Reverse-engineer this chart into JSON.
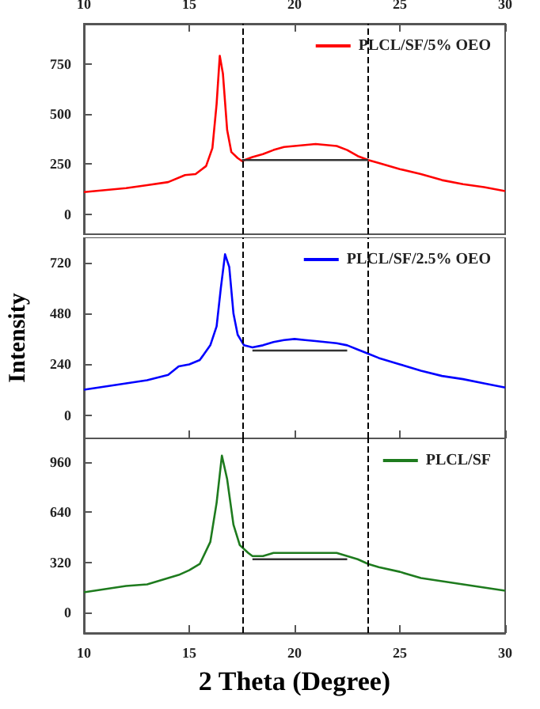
{
  "chart_data": [
    {
      "type": "line",
      "xlim": [
        10,
        30
      ],
      "xticks": [
        10,
        15,
        20,
        25,
        30
      ],
      "ylim": [
        -100,
        950
      ],
      "yticks": [
        0,
        250,
        500,
        750
      ],
      "legend": "top right",
      "grid": false,
      "marker": "none",
      "line_style": "solid",
      "ref_lines": [
        {
          "axis": "x",
          "value": 17.5,
          "line_style": "dashed",
          "color": "#000000"
        },
        {
          "axis": "x",
          "value": 23.5,
          "line_style": "dashed",
          "color": "#000000"
        }
      ],
      "series": [
        {
          "name": "PLCL/SF/5% OEO",
          "color": "#ff0000",
          "x": [
            10,
            11,
            12,
            13,
            14,
            14.8,
            15.3,
            15.8,
            16.1,
            16.3,
            16.45,
            16.6,
            16.8,
            17.0,
            17.3,
            17.5,
            18,
            18.5,
            19,
            19.5,
            20,
            20.5,
            21,
            21.5,
            22,
            22.5,
            23,
            23.5,
            24,
            25,
            26,
            27,
            28,
            29,
            30
          ],
          "values": [
            110,
            120,
            130,
            145,
            160,
            195,
            200,
            240,
            330,
            550,
            790,
            700,
            420,
            310,
            280,
            265,
            285,
            300,
            320,
            335,
            340,
            345,
            350,
            345,
            340,
            320,
            290,
            270,
            255,
            225,
            200,
            170,
            150,
            135,
            115
          ]
        },
        {
          "color": "#333333",
          "x": [
            17.5,
            23.5
          ],
          "values": [
            270,
            270
          ]
        }
      ]
    },
    {
      "type": "line",
      "xlim": [
        10,
        30
      ],
      "xticks": [
        10,
        15,
        20,
        25,
        30
      ],
      "ylim": [
        -110,
        840
      ],
      "yticks": [
        0,
        240,
        480,
        720
      ],
      "tick_labels": "y",
      "ylabel": "Intensity",
      "legend": "top right",
      "grid": false,
      "marker": "none",
      "line_style": "solid",
      "ref_lines": [
        {
          "axis": "x",
          "value": 17.5,
          "line_style": "dashed",
          "color": "#000000"
        },
        {
          "axis": "x",
          "value": 23.5,
          "line_style": "dashed",
          "color": "#000000"
        }
      ],
      "series": [
        {
          "name": "PLCL/SF/2.5% OEO",
          "color": "#0000ff",
          "x": [
            10,
            11,
            12,
            13,
            14,
            14.5,
            15,
            15.5,
            16,
            16.3,
            16.5,
            16.7,
            16.9,
            17.1,
            17.3,
            17.6,
            18,
            18.5,
            19,
            19.5,
            20,
            20.5,
            21,
            22,
            22.5,
            23,
            23.5,
            24,
            25,
            26,
            27,
            28,
            29,
            30
          ],
          "values": [
            120,
            135,
            150,
            165,
            190,
            230,
            240,
            260,
            330,
            420,
            600,
            760,
            700,
            480,
            380,
            330,
            320,
            330,
            345,
            355,
            360,
            355,
            350,
            340,
            330,
            310,
            290,
            270,
            240,
            210,
            185,
            170,
            150,
            130
          ]
        },
        {
          "color": "#333333",
          "x": [
            18,
            22.5
          ],
          "values": [
            305,
            305
          ]
        }
      ]
    },
    {
      "type": "line",
      "xlim": [
        10,
        30
      ],
      "xticks": [
        10,
        15,
        20,
        25,
        30
      ],
      "ylim": [
        -130,
        1110
      ],
      "yticks": [
        0,
        320,
        640,
        960
      ],
      "xlabel": "2 Theta (Degree)",
      "legend": "top right",
      "grid": false,
      "marker": "none",
      "line_style": "solid",
      "ref_lines": [
        {
          "axis": "x",
          "value": 17.5,
          "line_style": "dashed",
          "color": "#000000"
        },
        {
          "axis": "x",
          "value": 23.5,
          "line_style": "dashed",
          "color": "#000000"
        }
      ],
      "series": [
        {
          "name": "PLCL/SF",
          "color": "#1e7b1e",
          "x": [
            10,
            11,
            12,
            13,
            14,
            14.5,
            15,
            15.5,
            16,
            16.3,
            16.55,
            16.8,
            17.1,
            17.4,
            17.8,
            18,
            18.5,
            19,
            19.5,
            20,
            21,
            22,
            22.5,
            23,
            23.5,
            24,
            25,
            26,
            27,
            28,
            29,
            30
          ],
          "values": [
            130,
            150,
            170,
            180,
            220,
            240,
            270,
            310,
            450,
            700,
            1000,
            850,
            560,
            430,
            380,
            360,
            360,
            380,
            380,
            380,
            380,
            380,
            360,
            340,
            310,
            290,
            260,
            220,
            200,
            180,
            160,
            140
          ]
        },
        {
          "color": "#333333",
          "x": [
            18,
            22.5
          ],
          "values": [
            340,
            340
          ]
        }
      ]
    }
  ]
}
